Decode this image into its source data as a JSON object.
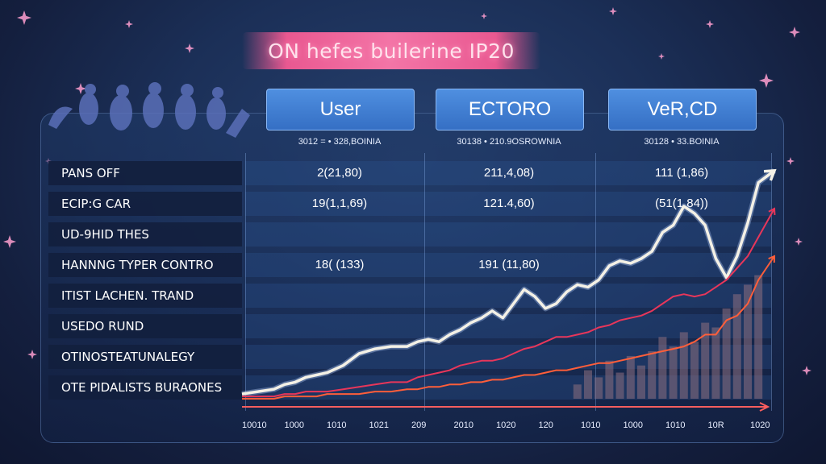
{
  "title": "ON hefes builerine IP20",
  "columns": [
    {
      "label": "User",
      "sub": "3012 = • 328,BOINIA"
    },
    {
      "label": "ECTORO",
      "sub": "30138 • 210.9OSROWNIA"
    },
    {
      "label": "VeR,CD",
      "sub": "30128 • 33.BOINIA"
    }
  ],
  "rows": [
    {
      "label": "PANS OFF",
      "values": [
        "2(21,80)",
        "211,4,08)",
        "111 (1,86)"
      ]
    },
    {
      "label": "ECIP:G CAR",
      "values": [
        "19(1,1,69)",
        "121.4,60)",
        "(51(1,84))"
      ]
    },
    {
      "label": "UD-9HID THES",
      "values": [
        "",
        "",
        ""
      ]
    },
    {
      "label": "HANNNG TYPER CONTRO",
      "values": [
        "18( (133)",
        "191 (11,80)",
        ""
      ]
    },
    {
      "label": "ITIST LACHEN. TRAND",
      "values": [
        "",
        "",
        ""
      ]
    },
    {
      "label": "USEDO RUND",
      "values": [
        "",
        "",
        ""
      ]
    },
    {
      "label": "OTINOSTEATUNALEGY",
      "values": [
        "",
        "",
        ""
      ]
    },
    {
      "label": "OTE PIDALISTS BURAONES",
      "values": [
        "",
        "",
        ""
      ]
    }
  ],
  "x_ticks": [
    "10010",
    "1000",
    "1010",
    "1021",
    "209",
    "2010",
    "1020",
    "120",
    "1010",
    "1000",
    "1010",
    "10R",
    "1020"
  ],
  "colors": {
    "main_line": "#f4f1e6",
    "trend_red": "#e8365a",
    "trend_orange": "#ff5e3a",
    "bars": "#8e6f80",
    "header_blue": "#4a86d8",
    "accent_pink": "#ff5c96"
  },
  "chart_data": {
    "type": "line",
    "title": "ON hefes builerine IP20",
    "xlabel": "",
    "ylabel": "",
    "x_ticks": [
      "10010",
      "1000",
      "1010",
      "1021",
      "209",
      "2010",
      "1020",
      "120",
      "1010",
      "1000",
      "1010",
      "10R",
      "1020"
    ],
    "x": [
      0,
      3,
      6,
      8,
      10,
      12,
      14,
      16,
      19,
      22,
      25,
      28,
      31,
      33,
      35,
      37,
      39,
      41,
      43,
      45,
      47,
      49,
      51,
      53,
      55,
      57,
      59,
      61,
      63,
      65,
      67,
      69,
      71,
      73,
      75,
      77,
      79,
      81,
      83,
      85,
      87,
      89,
      91,
      93,
      95,
      97,
      100
    ],
    "ylim": [
      0,
      100
    ],
    "series": [
      {
        "values": [
          2,
          3,
          4,
          6,
          7,
          9,
          10,
          11,
          14,
          19,
          21,
          22,
          22,
          24,
          25,
          24,
          27,
          29,
          32,
          34,
          37,
          34,
          40,
          46,
          43,
          38,
          40,
          45,
          48,
          47,
          50,
          56,
          58,
          57,
          59,
          62,
          70,
          73,
          81,
          78,
          73,
          59,
          51,
          60,
          74,
          91,
          96
        ],
        "marker": "line",
        "color": "#f4f1e6"
      },
      {
        "values": [
          1,
          1,
          1,
          2,
          2,
          3,
          3,
          3,
          4,
          5,
          6,
          7,
          7,
          9,
          10,
          11,
          12,
          14,
          15,
          16,
          16,
          17,
          19,
          21,
          22,
          24,
          26,
          26,
          27,
          28,
          30,
          31,
          33,
          34,
          35,
          37,
          40,
          43,
          44,
          43,
          44,
          47,
          50,
          55,
          60,
          68,
          80
        ],
        "marker": "line",
        "color": "#e8365a"
      },
      {
        "values": [
          0,
          0,
          0,
          1,
          1,
          1,
          1,
          2,
          2,
          2,
          3,
          3,
          4,
          4,
          5,
          5,
          6,
          6,
          7,
          7,
          8,
          8,
          9,
          10,
          10,
          11,
          12,
          12,
          13,
          14,
          15,
          15,
          16,
          17,
          18,
          19,
          20,
          21,
          22,
          24,
          27,
          27,
          33,
          35,
          40,
          50,
          60
        ],
        "marker": "line",
        "color": "#ff5e3a"
      }
    ],
    "bars": {
      "x": [
        63,
        65,
        67,
        69,
        71,
        73,
        75,
        77,
        79,
        81,
        83,
        85,
        87,
        89,
        91,
        93,
        95,
        97
      ],
      "values": [
        6,
        12,
        9,
        16,
        11,
        18,
        14,
        20,
        26,
        22,
        28,
        24,
        32,
        30,
        38,
        44,
        48,
        52
      ],
      "color": "#8e6f80"
    },
    "grid": true,
    "legend": "none"
  }
}
